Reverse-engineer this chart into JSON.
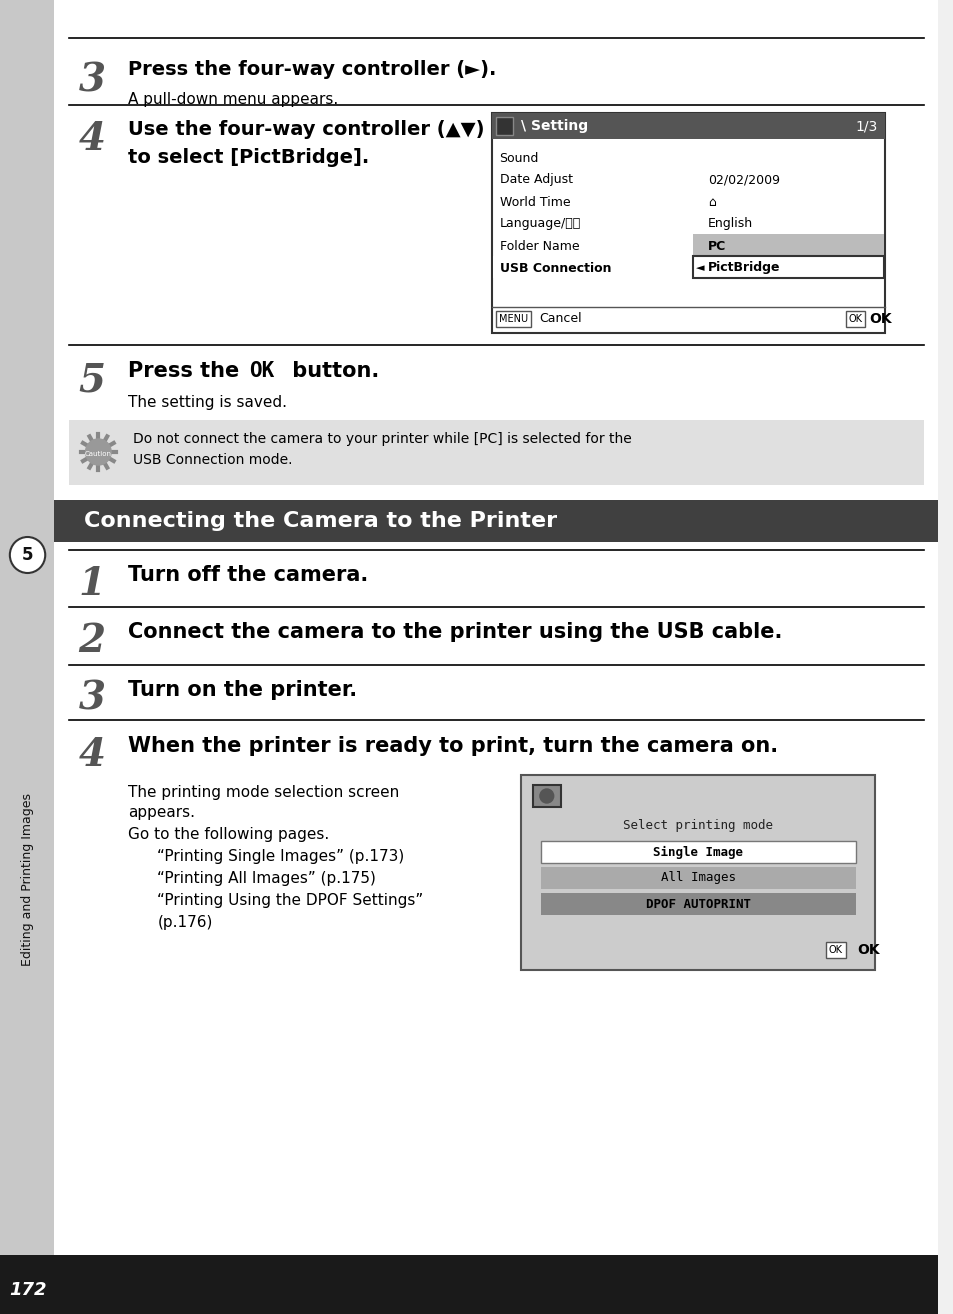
{
  "page_bg": "#f0f0f0",
  "content_bg": "#ffffff",
  "sidebar_bg": "#c8c8c8",
  "sidebar_dark": "#555555",
  "header_bg": "#404040",
  "header_text": "#ffffff",
  "caution_bg": "#e8e8e8",
  "page_number": "172",
  "sidebar_label": "5",
  "sidebar_text": "Editing and Printing Images",
  "section_title": "Connecting the Camera to the Printer",
  "step3_num": "3",
  "step3_title": "Press the four-way controller (►).",
  "step3_sub": "A pull-down menu appears.",
  "step4_num": "4",
  "step4_title": "Use the four-way controller (▲▼)",
  "step4_title2": "to select [PictBridge].",
  "step5_num": "5",
  "step5_title": "Press the OK button.",
  "step5_sub": "The setting is saved.",
  "caution_text": "Do not connect the camera to your printer while [PC] is selected for the\nUSB Connection mode.",
  "sec_step1_num": "1",
  "sec_step1_title": "Turn off the camera.",
  "sec_step2_num": "2",
  "sec_step2_title": "Connect the camera to the printer using the USB cable.",
  "sec_step3_num": "3",
  "sec_step3_title": "Turn on the printer.",
  "sec_step4_num": "4",
  "sec_step4_title": "When the printer is ready to print, turn the camera on.",
  "sec_step4_sub1": "The printing mode selection screen",
  "sec_step4_sub2": "appears.",
  "sec_step4_sub3": "Go to the following pages.",
  "sec_step4_sub4": "“Printing Single Images” (p.173)",
  "sec_step4_sub5": "“Printing All Images” (p.175)",
  "sec_step4_sub6": "“Printing Using the DPOF Settings”",
  "sec_step4_sub7": "(p.176)",
  "menu_title": "Setting",
  "menu_page": "1/3",
  "menu_items": [
    "Sound",
    "Date Adjust",
    "World Time",
    "Language/言語",
    "Folder Name",
    "USB Connection"
  ],
  "menu_values": [
    "",
    "02/02/2009",
    "⌂",
    "English",
    "PC",
    "PictBridge"
  ],
  "screen_title": "Select printing mode",
  "screen_items": [
    "Single Image",
    "All Images",
    "DPOF AUTOPRINT"
  ]
}
